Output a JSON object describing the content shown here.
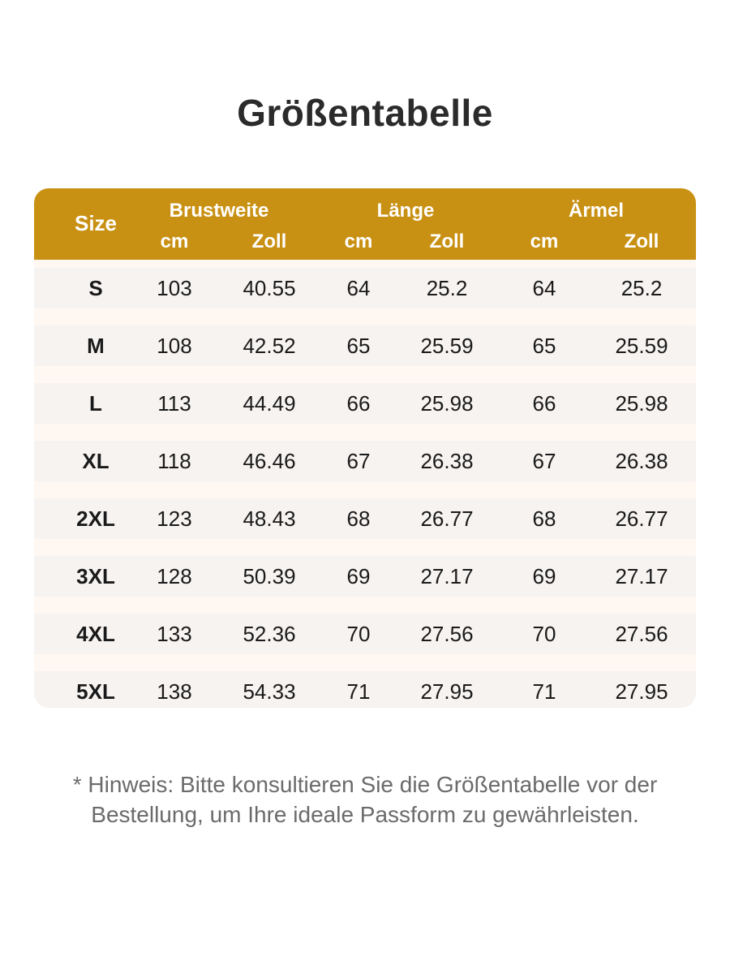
{
  "title": "Größentabelle",
  "header": {
    "size": "Size",
    "groups": [
      "Brustweite",
      "Länge",
      "Ärmel"
    ],
    "units": [
      "cm",
      "Zoll",
      "cm",
      "Zoll",
      "cm",
      "Zoll"
    ]
  },
  "rows": [
    {
      "size": "S",
      "values": [
        "103",
        "40.55",
        "64",
        "25.2",
        "64",
        "25.2"
      ]
    },
    {
      "size": "M",
      "values": [
        "108",
        "42.52",
        "65",
        "25.59",
        "65",
        "25.59"
      ]
    },
    {
      "size": "L",
      "values": [
        "113",
        "44.49",
        "66",
        "25.98",
        "66",
        "25.98"
      ]
    },
    {
      "size": "XL",
      "values": [
        "118",
        "46.46",
        "67",
        "26.38",
        "67",
        "26.38"
      ]
    },
    {
      "size": "2XL",
      "values": [
        "123",
        "48.43",
        "68",
        "26.77",
        "68",
        "26.77"
      ]
    },
    {
      "size": "3XL",
      "values": [
        "128",
        "50.39",
        "69",
        "27.17",
        "69",
        "27.17"
      ]
    },
    {
      "size": "4XL",
      "values": [
        "133",
        "52.36",
        "70",
        "27.56",
        "70",
        "27.56"
      ]
    },
    {
      "size": "5XL",
      "values": [
        "138",
        "54.33",
        "71",
        "27.95",
        "71",
        "27.95"
      ]
    }
  ],
  "note": {
    "line1": "* Hinweis: Bitte konsultieren Sie die Größentabelle vor der",
    "line2": "Bestellung, um Ihre ideale Passform zu gewährleisten."
  },
  "colors": {
    "header_bg": "#c99113",
    "row_bg": "#f6f3f1",
    "gap_bg": "#fff8f2"
  }
}
